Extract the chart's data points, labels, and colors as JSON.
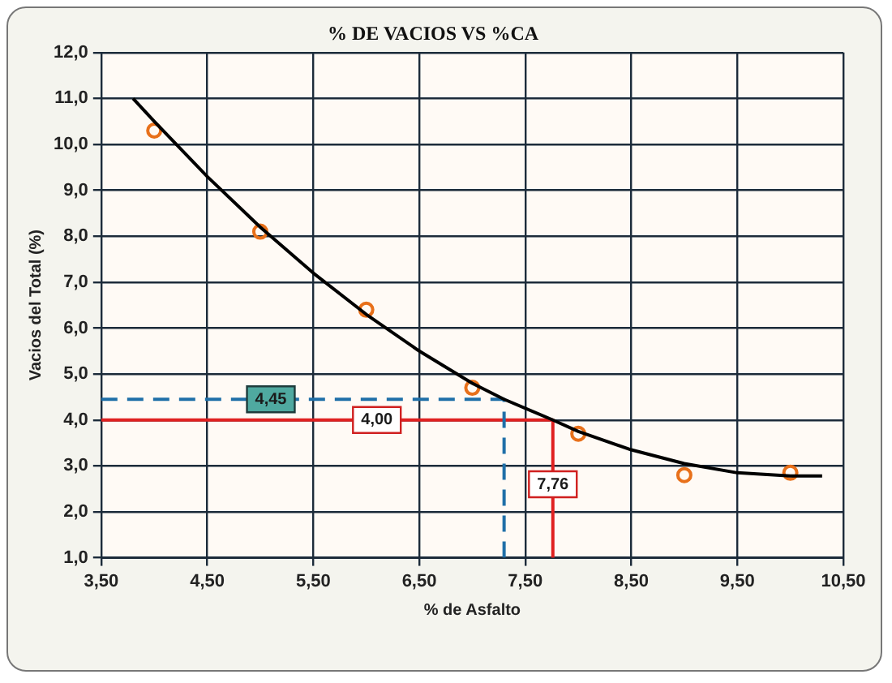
{
  "chart_data": {
    "type": "scatter",
    "title": "% DE VACIOS VS %CA",
    "xlabel": "% de Asfalto",
    "ylabel": "Vacios del Total (%)",
    "xlim": [
      3.5,
      10.5
    ],
    "xticks": [
      {
        "value": 3.5,
        "label": "3,50"
      },
      {
        "value": 4.5,
        "label": "4,50"
      },
      {
        "value": 5.5,
        "label": "5,50"
      },
      {
        "value": 6.5,
        "label": "6,50"
      },
      {
        "value": 7.5,
        "label": "7,50"
      },
      {
        "value": 8.5,
        "label": "8,50"
      },
      {
        "value": 9.5,
        "label": "9,50"
      },
      {
        "value": 10.5,
        "label": "10,50"
      }
    ],
    "ylim": [
      1,
      12
    ],
    "yticks": [
      {
        "value": 1,
        "label": "1,0"
      },
      {
        "value": 2,
        "label": "2,0"
      },
      {
        "value": 3,
        "label": "3,0"
      },
      {
        "value": 4,
        "label": "4,0"
      },
      {
        "value": 5,
        "label": "5,0"
      },
      {
        "value": 6,
        "label": "6,0"
      },
      {
        "value": 7,
        "label": "7,0"
      },
      {
        "value": 8,
        "label": "8,0"
      },
      {
        "value": 9,
        "label": "9,0"
      },
      {
        "value": 10,
        "label": "10,0"
      },
      {
        "value": 11,
        "label": "11,0"
      },
      {
        "value": 12,
        "label": "12,0"
      }
    ],
    "grid": true,
    "legend": false,
    "series": [
      {
        "type": "line",
        "color": "#000000",
        "marker": "none",
        "line_style": "solid",
        "x": [
          3.8,
          4,
          4.5,
          5,
          5.5,
          6,
          6.5,
          7,
          7.3,
          7.76,
          8,
          8.5,
          9,
          9.5,
          10,
          10.3
        ],
        "values": [
          11.0,
          10.5,
          9.3,
          8.2,
          7.2,
          6.3,
          5.5,
          4.8,
          4.45,
          4.0,
          3.75,
          3.35,
          3.05,
          2.85,
          2.78,
          2.78
        ]
      },
      {
        "type": "line",
        "color": "#1f6fa8",
        "marker": "none",
        "line_style": "dashed",
        "x": [
          3.5,
          7.3,
          7.3
        ],
        "values": [
          4.45,
          4.45,
          1
        ]
      },
      {
        "type": "line",
        "color": "#e02020",
        "marker": "none",
        "line_style": "solid",
        "x": [
          3.5,
          7.76,
          7.76
        ],
        "values": [
          4.0,
          4.0,
          1
        ]
      },
      {
        "type": "scatter",
        "color": "#e8701a",
        "marker": "circle",
        "x": [
          4,
          5,
          6,
          7,
          8,
          9,
          10
        ],
        "values": [
          10.3,
          8.1,
          6.4,
          4.7,
          3.7,
          2.8,
          2.85
        ]
      }
    ],
    "annotations": [
      {
        "text": "4,45",
        "x": 5.1,
        "y": 4.45
      },
      {
        "text": "4,00",
        "x": 6.1,
        "y": 4.0
      },
      {
        "text": "7,76",
        "x": 7.76,
        "y": 2.6
      }
    ]
  }
}
